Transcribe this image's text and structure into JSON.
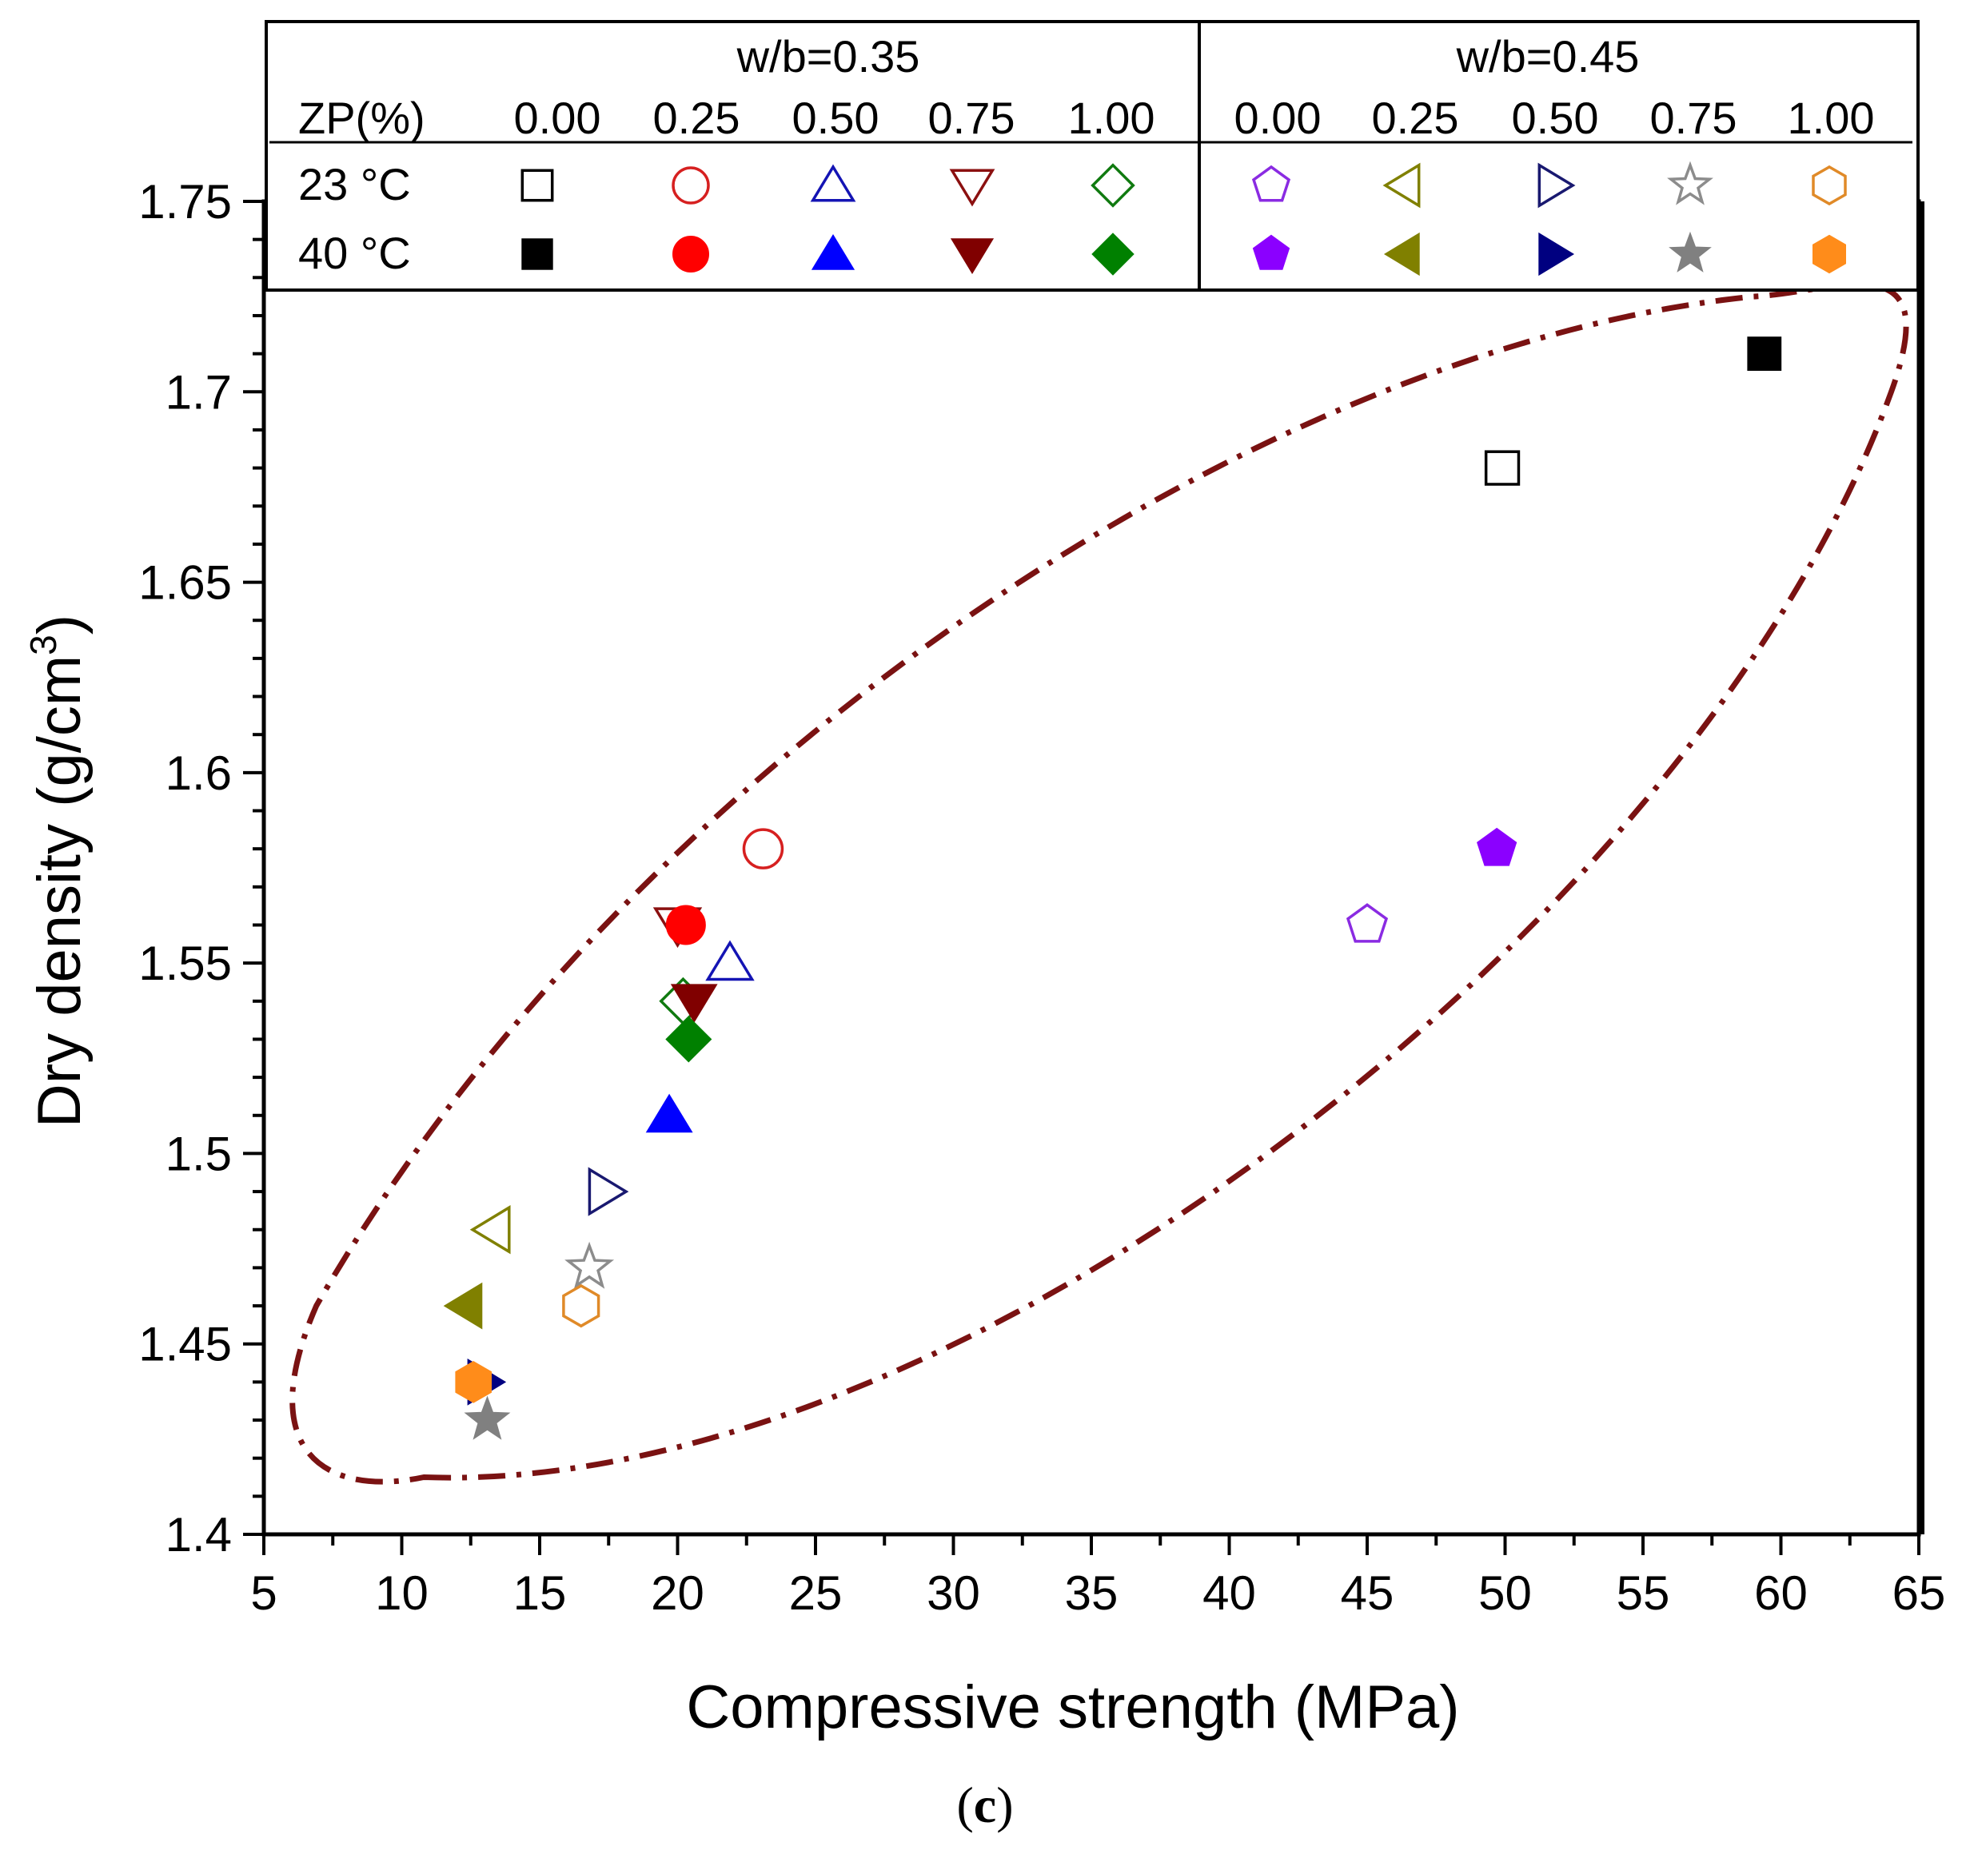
{
  "chart_data": {
    "type": "scatter",
    "title": "",
    "xlabel": "Compressive strength (MPa)",
    "ylabel_main": "Dry density (g/cm",
    "ylabel_sup": "3",
    "ylabel_close": ")",
    "xlim": [
      5,
      65
    ],
    "ylim": [
      1.4,
      1.75
    ],
    "xticks": [
      5,
      10,
      15,
      20,
      25,
      30,
      35,
      40,
      45,
      50,
      55,
      60,
      65
    ],
    "xtick_labels": [
      "5",
      "10",
      "15",
      "20",
      "25",
      "30",
      "35",
      "40",
      "45",
      "50",
      "55",
      "60",
      "65"
    ],
    "yticks": [
      1.4,
      1.45,
      1.5,
      1.55,
      1.6,
      1.65,
      1.7,
      1.75
    ],
    "ytick_labels": [
      "1.4",
      "1.45",
      "1.5",
      "1.55",
      "1.6",
      "1.65",
      "1.7",
      "1.75"
    ],
    "caption_open": "(",
    "caption_letter": "c",
    "caption_close": ")",
    "legend": {
      "group_labels": [
        "w/b=0.35",
        "w/b=0.45"
      ],
      "zp_header": "ZP(%)",
      "zp_values": [
        "0.00",
        "0.25",
        "0.50",
        "0.75",
        "1.00",
        "0.00",
        "0.25",
        "0.50",
        "0.75",
        "1.00"
      ],
      "row_labels": [
        "23 °C",
        "40 °C"
      ]
    },
    "ellipse": {
      "style": "dash-dot",
      "color": "#7a1212",
      "description": ""
    },
    "series": [
      {
        "name": "w/b=0.35 ZP 0.00 23 °C",
        "marker": "square",
        "filled": false,
        "color": "#000000",
        "x": 49.9,
        "y": 1.68
      },
      {
        "name": "w/b=0.35 ZP 0.25 23 °C",
        "marker": "circle",
        "filled": false,
        "color": "#d62020",
        "x": 23.1,
        "y": 1.58
      },
      {
        "name": "w/b=0.35 ZP 0.50 23 °C",
        "marker": "triangle-up",
        "filled": false,
        "color": "#1414b4",
        "x": 21.9,
        "y": 1.55
      },
      {
        "name": "w/b=0.35 ZP 0.75 23 °C",
        "marker": "triangle-down",
        "filled": false,
        "color": "#8b1010",
        "x": 20.0,
        "y": 1.56
      },
      {
        "name": "w/b=0.35 ZP 1.00 23 °C",
        "marker": "diamond",
        "filled": false,
        "color": "#107a10",
        "x": 20.2,
        "y": 1.54
      },
      {
        "name": "w/b=0.45 ZP 0.00 23 °C",
        "marker": "pentagon",
        "filled": false,
        "color": "#8a2be2",
        "x": 45.0,
        "y": 1.56
      },
      {
        "name": "w/b=0.45 ZP 0.25 23 °C",
        "marker": "triangle-left",
        "filled": false,
        "color": "#808000",
        "x": 13.3,
        "y": 1.48
      },
      {
        "name": "w/b=0.45 ZP 0.50 23 °C",
        "marker": "triangle-right",
        "filled": false,
        "color": "#191970",
        "x": 17.4,
        "y": 1.49
      },
      {
        "name": "w/b=0.45 ZP 0.75 23 °C",
        "marker": "star",
        "filled": false,
        "color": "#8c8c8c",
        "x": 16.8,
        "y": 1.47
      },
      {
        "name": "w/b=0.45 ZP 1.00 23 °C",
        "marker": "hexagon",
        "filled": false,
        "color": "#e08a28",
        "x": 16.5,
        "y": 1.46
      },
      {
        "name": "w/b=0.35 ZP 0.00 40 °C",
        "marker": "square",
        "filled": true,
        "color": "#000000",
        "x": 59.4,
        "y": 1.71
      },
      {
        "name": "w/b=0.35 ZP 0.25 40 °C",
        "marker": "circle",
        "filled": true,
        "color": "#ff0000",
        "x": 20.3,
        "y": 1.56
      },
      {
        "name": "w/b=0.35 ZP 0.50 40 °C",
        "marker": "triangle-up",
        "filled": true,
        "color": "#0000ff",
        "x": 19.7,
        "y": 1.51
      },
      {
        "name": "w/b=0.35 ZP 0.75 40 °C",
        "marker": "triangle-down",
        "filled": true,
        "color": "#800000",
        "x": 20.6,
        "y": 1.54
      },
      {
        "name": "w/b=0.35 ZP 1.00 40 °C",
        "marker": "diamond",
        "filled": true,
        "color": "#008000",
        "x": 20.4,
        "y": 1.53
      },
      {
        "name": "w/b=0.45 ZP 0.00 40 °C",
        "marker": "pentagon",
        "filled": true,
        "color": "#8b00ff",
        "x": 49.7,
        "y": 1.58
      },
      {
        "name": "w/b=0.45 ZP 0.25 40 °C",
        "marker": "triangle-left",
        "filled": true,
        "color": "#808000",
        "x": 12.3,
        "y": 1.46
      },
      {
        "name": "w/b=0.45 ZP 0.50 40 °C",
        "marker": "triangle-right",
        "filled": true,
        "color": "#000080",
        "x": 13.0,
        "y": 1.44
      },
      {
        "name": "w/b=0.45 ZP 0.75 40 °C",
        "marker": "star",
        "filled": true,
        "color": "#808080",
        "x": 13.1,
        "y": 1.43
      },
      {
        "name": "w/b=0.45 ZP 1.00 40 °C",
        "marker": "hexagon",
        "filled": true,
        "color": "#ff8c1a",
        "x": 12.6,
        "y": 1.44
      }
    ]
  }
}
